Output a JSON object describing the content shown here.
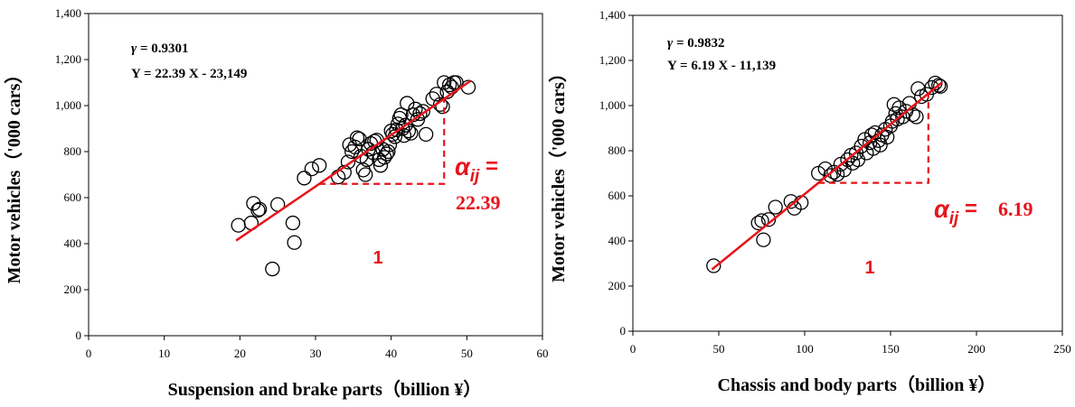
{
  "chart_data": [
    {
      "type": "scatter",
      "xlabel": "Suspension and brake parts（billion ¥）",
      "ylabel": "Motor vehicles（'000 cars）",
      "xlim": [
        0,
        60
      ],
      "ylim": [
        0,
        1400
      ],
      "xticks": [
        0,
        10,
        20,
        30,
        40,
        50,
        60
      ],
      "yticks": [
        0,
        200,
        400,
        600,
        800,
        1000,
        1200,
        1400
      ],
      "ytick_labels": [
        "0",
        "200",
        "400",
        "600",
        "800",
        "1,000",
        "1,200",
        "1,400"
      ],
      "grid": false,
      "annotation": {
        "gamma_symbol": "γ",
        "gamma_rest": " = 0.9301",
        "equation": "Y = 22.39 X - 23,149"
      },
      "regression": {
        "slope": 22.39,
        "intercept": -23149,
        "x_range": [
          19.5,
          50.5
        ]
      },
      "slope_triangle": {
        "x0": 30.5,
        "x1": 47,
        "alpha_label": "α",
        "alpha_sub": "ij",
        "alpha_eq": " =",
        "alpha_value": "22.39",
        "one_label": "1"
      },
      "points": [
        [
          19.8,
          480
        ],
        [
          21.5,
          490
        ],
        [
          21.8,
          575
        ],
        [
          22.4,
          545
        ],
        [
          22.6,
          550
        ],
        [
          24.3,
          290
        ],
        [
          25.0,
          570
        ],
        [
          27.0,
          490
        ],
        [
          27.2,
          405
        ],
        [
          28.5,
          685
        ],
        [
          29.5,
          725
        ],
        [
          30.5,
          740
        ],
        [
          33.0,
          690
        ],
        [
          33.8,
          710
        ],
        [
          34.3,
          755
        ],
        [
          34.5,
          830
        ],
        [
          34.8,
          800
        ],
        [
          35.2,
          820
        ],
        [
          35.5,
          860
        ],
        [
          35.8,
          855
        ],
        [
          36.0,
          780
        ],
        [
          36.3,
          720
        ],
        [
          36.6,
          700
        ],
        [
          36.8,
          765
        ],
        [
          37.0,
          810
        ],
        [
          37.3,
          835
        ],
        [
          37.6,
          795
        ],
        [
          37.8,
          845
        ],
        [
          38.1,
          850
        ],
        [
          38.4,
          765
        ],
        [
          38.6,
          740
        ],
        [
          38.9,
          810
        ],
        [
          39.1,
          775
        ],
        [
          39.4,
          790
        ],
        [
          39.6,
          800
        ],
        [
          39.8,
          830
        ],
        [
          40.0,
          890
        ],
        [
          40.2,
          875
        ],
        [
          40.5,
          865
        ],
        [
          40.7,
          895
        ],
        [
          40.9,
          920
        ],
        [
          41.1,
          945
        ],
        [
          41.3,
          960
        ],
        [
          41.5,
          900
        ],
        [
          41.7,
          870
        ],
        [
          41.9,
          915
        ],
        [
          42.1,
          1010
        ],
        [
          42.3,
          890
        ],
        [
          42.6,
          880
        ],
        [
          42.9,
          960
        ],
        [
          43.2,
          985
        ],
        [
          43.5,
          940
        ],
        [
          43.8,
          965
        ],
        [
          44.2,
          975
        ],
        [
          44.6,
          875
        ],
        [
          45.5,
          1030
        ],
        [
          46.0,
          1050
        ],
        [
          46.5,
          1005
        ],
        [
          46.8,
          995
        ],
        [
          47.0,
          1100
        ],
        [
          47.4,
          1060
        ],
        [
          47.7,
          1090
        ],
        [
          48.0,
          1080
        ],
        [
          48.3,
          1100
        ],
        [
          48.6,
          1100
        ],
        [
          50.2,
          1080
        ]
      ]
    },
    {
      "type": "scatter",
      "xlabel": "Chassis and body parts（billion ¥）",
      "ylabel": "Motor vehicles（'000 cars）",
      "xlim": [
        0,
        250
      ],
      "ylim": [
        0,
        1400
      ],
      "xticks": [
        0,
        50,
        100,
        150,
        200,
        250
      ],
      "yticks": [
        0,
        200,
        400,
        600,
        800,
        1000,
        1200,
        1400
      ],
      "ytick_labels": [
        "0",
        "200",
        "400",
        "600",
        "800",
        "1,000",
        "1,200",
        "1,400"
      ],
      "grid": false,
      "annotation": {
        "gamma_symbol": "γ",
        "gamma_rest": " = 0.9832",
        "equation": "Y = 6.19 X - 11,139"
      },
      "regression": {
        "slope": 6.19,
        "intercept": -11139,
        "x_range": [
          46,
          180
        ]
      },
      "slope_triangle": {
        "x0": 108,
        "x1": 172,
        "alpha_label": "α",
        "alpha_sub": "ij",
        "alpha_eq": " =",
        "alpha_value": "6.19",
        "one_label": "1"
      },
      "points": [
        [
          47,
          290
        ],
        [
          73,
          480
        ],
        [
          75,
          490
        ],
        [
          76,
          405
        ],
        [
          79,
          495
        ],
        [
          83,
          550
        ],
        [
          92,
          575
        ],
        [
          94,
          545
        ],
        [
          98,
          570
        ],
        [
          108,
          700
        ],
        [
          112,
          720
        ],
        [
          115,
          690
        ],
        [
          117,
          705
        ],
        [
          119,
          695
        ],
        [
          121,
          740
        ],
        [
          123,
          715
        ],
        [
          125,
          760
        ],
        [
          127,
          780
        ],
        [
          128,
          745
        ],
        [
          130,
          790
        ],
        [
          131,
          760
        ],
        [
          133,
          820
        ],
        [
          135,
          850
        ],
        [
          136,
          790
        ],
        [
          138,
          835
        ],
        [
          139,
          870
        ],
        [
          140,
          810
        ],
        [
          141,
          880
        ],
        [
          143,
          845
        ],
        [
          144,
          825
        ],
        [
          145,
          870
        ],
        [
          147,
          895
        ],
        [
          148,
          860
        ],
        [
          150,
          910
        ],
        [
          151,
          930
        ],
        [
          152,
          1005
        ],
        [
          153,
          965
        ],
        [
          154,
          940
        ],
        [
          155,
          990
        ],
        [
          157,
          950
        ],
        [
          159,
          975
        ],
        [
          161,
          1010
        ],
        [
          163,
          960
        ],
        [
          165,
          950
        ],
        [
          166,
          1075
        ],
        [
          168,
          1040
        ],
        [
          171,
          1050
        ],
        [
          174,
          1080
        ],
        [
          176,
          1100
        ],
        [
          178,
          1090
        ],
        [
          179,
          1085
        ]
      ]
    }
  ]
}
